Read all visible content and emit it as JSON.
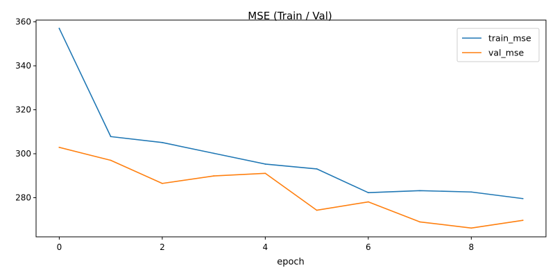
{
  "chart_data": {
    "type": "line",
    "title": "MSE (Train / Val)",
    "xlabel": "epoch",
    "ylabel": "",
    "x": [
      0,
      1,
      2,
      3,
      4,
      5,
      6,
      7,
      8,
      9
    ],
    "xlim": [
      -0.45,
      9.45
    ],
    "ylim": [
      262.2,
      360.8
    ],
    "xticks": [
      0,
      2,
      4,
      6,
      8
    ],
    "yticks": [
      280,
      300,
      320,
      340,
      360
    ],
    "grid": false,
    "legend_position": "top-right",
    "series": [
      {
        "name": "train_mse",
        "color": "#1f77b4",
        "values": [
          357.0,
          307.8,
          305.1,
          300.2,
          295.3,
          293.1,
          282.3,
          283.2,
          282.6,
          279.6
        ]
      },
      {
        "name": "val_mse",
        "color": "#ff7f0e",
        "values": [
          302.9,
          297.0,
          286.5,
          289.9,
          291.1,
          274.3,
          278.1,
          269.0,
          266.2,
          269.7
        ]
      }
    ]
  }
}
